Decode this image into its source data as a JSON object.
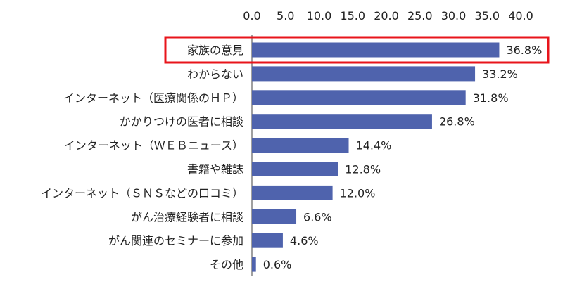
{
  "chart_data": {
    "type": "bar",
    "orientation": "horizontal",
    "categories": [
      "家族の意見",
      "わからない",
      "インターネット（医療関係のＨＰ）",
      "かかりつけの医者に相談",
      "インターネット（ＷＥＢニュース）",
      "書籍や雑誌",
      "インターネット（ＳＮＳなどの口コミ）",
      "がん治療経験者に相談",
      "がん関連のセミナーに参加",
      "その他"
    ],
    "values": [
      36.8,
      33.2,
      31.8,
      26.8,
      14.4,
      12.8,
      12.0,
      6.6,
      4.6,
      0.6
    ],
    "value_labels": [
      "36.8%",
      "33.2%",
      "31.8%",
      "26.8%",
      "14.4%",
      "12.8%",
      "12.0%",
      "6.6%",
      "4.6%",
      "0.6%"
    ],
    "xlim": [
      0,
      40
    ],
    "x_ticks": [
      "0.0",
      "5.0",
      "10.0",
      "15.0",
      "20.0",
      "25.0",
      "30.0",
      "35.0",
      "40.0"
    ],
    "x_axis_position": "top",
    "grid": false,
    "highlighted_category": "家族の意見",
    "colors": {
      "bar": "#4f63ad",
      "highlight_border": "#e8141b",
      "axis": "#404040"
    }
  }
}
